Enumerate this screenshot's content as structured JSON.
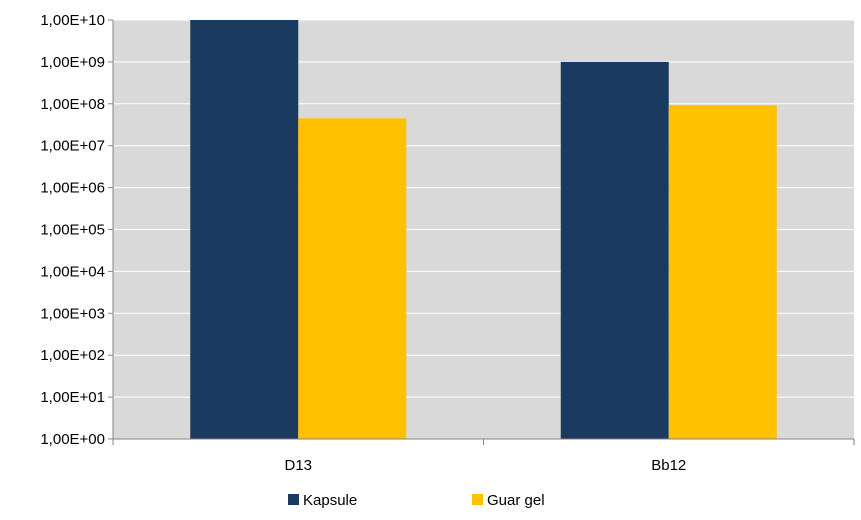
{
  "chart_data": {
    "type": "bar",
    "y_scale": "log",
    "ylim": [
      1,
      10000000000
    ],
    "y_ticks": [
      {
        "value": 1,
        "label": "1,00E+00"
      },
      {
        "value": 10,
        "label": "1,00E+01"
      },
      {
        "value": 100,
        "label": "1,00E+02"
      },
      {
        "value": 1000,
        "label": "1,00E+03"
      },
      {
        "value": 10000,
        "label": "1,00E+04"
      },
      {
        "value": 100000,
        "label": "1,00E+05"
      },
      {
        "value": 1000000,
        "label": "1,00E+06"
      },
      {
        "value": 10000000,
        "label": "1,00E+07"
      },
      {
        "value": 100000000,
        "label": "1,00E+08"
      },
      {
        "value": 1000000000,
        "label": "1,00E+09"
      },
      {
        "value": 10000000000,
        "label": "1,00E+10"
      }
    ],
    "categories": [
      "D13",
      "Bb12"
    ],
    "series": [
      {
        "name": "Kapsule",
        "color": "#1b3a5f",
        "values": [
          10000000000,
          1000000000
        ]
      },
      {
        "name": "Guar gel",
        "color": "#ffc000",
        "values": [
          45000000,
          92000000
        ]
      }
    ],
    "grid": true,
    "plot_background": "#d9d9d9",
    "gridline_color": "#ffffff",
    "legend_position": "bottom"
  }
}
